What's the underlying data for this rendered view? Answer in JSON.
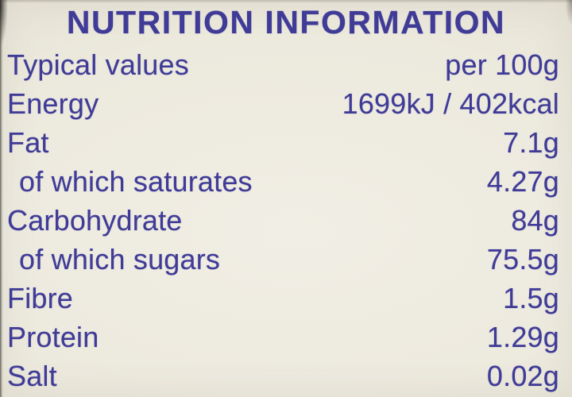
{
  "label": {
    "title": "NUTRITION INFORMATION",
    "header": {
      "left": "Typical values",
      "right": "per 100g"
    },
    "rows": [
      {
        "name": "Energy",
        "value": "1699kJ / 402kcal",
        "indent": false
      },
      {
        "name": "Fat",
        "value": "7.1g",
        "indent": false
      },
      {
        "name": "of which saturates",
        "value": "4.27g",
        "indent": true
      },
      {
        "name": "Carbohydrate",
        "value": "84g",
        "indent": false
      },
      {
        "name": "of which sugars",
        "value": "75.5g",
        "indent": true
      },
      {
        "name": "Fibre",
        "value": "1.5g",
        "indent": false
      },
      {
        "name": "Protein",
        "value": "1.29g",
        "indent": false
      },
      {
        "name": "Salt",
        "value": "0.02g",
        "indent": false
      }
    ],
    "colors": {
      "text": "#3f3b97",
      "background": "#ece9dd"
    }
  }
}
